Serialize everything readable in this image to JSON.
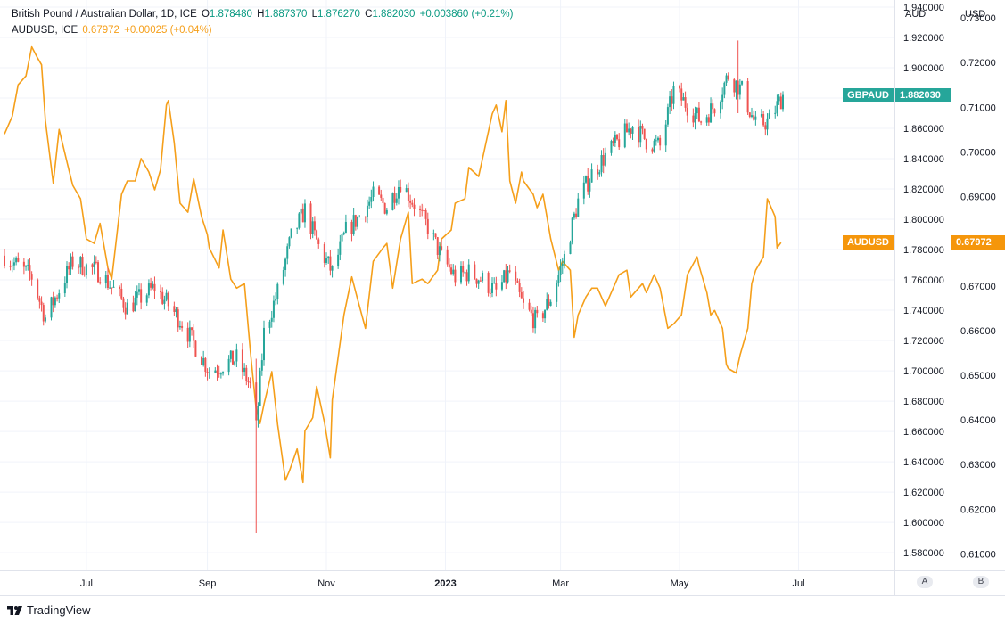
{
  "header": {
    "main_symbol": "British Pound / Australian Dollar, 1D, ICE",
    "o_label": "O",
    "o_value": "1.878480",
    "h_label": "H",
    "h_value": "1.887370",
    "l_label": "L",
    "l_value": "1.876270",
    "c_label": "C",
    "c_value": "1.882030",
    "change": "+0.003860 (+0.21%)",
    "compare_symbol": "AUDUSD, ICE",
    "compare_value": "0.67972",
    "compare_change": "+0.00025 (+0.04%)"
  },
  "axes": {
    "left_title": "AUD",
    "right_title": "USD",
    "left_scale_button": "A",
    "right_scale_button": "B"
  },
  "tags": {
    "gbpaud_label": "GBPAUD",
    "gbpaud_value": "1.882030",
    "audusd_label": "AUDUSD",
    "audusd_value": "0.67972"
  },
  "brand": "TradingView",
  "colors": {
    "up": "#26a69a",
    "down": "#ef5350",
    "compare": "#f59f1a",
    "grid": "#f0f3fa",
    "gbpaud_tag": "#26a69a",
    "audusd_tag": "#f5960b"
  },
  "chart_data": [
    {
      "type": "candlestick",
      "series_name": "GBPAUD",
      "axis_title": "AUD",
      "x_ticks": [
        "Jul",
        "Sep",
        "Nov",
        "2023",
        "Mar",
        "May",
        "Jul"
      ],
      "y_ticks": [
        1.58,
        1.6,
        1.62,
        1.64,
        1.66,
        1.68,
        1.7,
        1.72,
        1.74,
        1.76,
        1.78,
        1.8,
        1.82,
        1.84,
        1.86,
        1.88,
        1.9,
        1.92,
        1.94
      ],
      "ylim": [
        1.5683,
        1.9447
      ],
      "last": 1.88203,
      "anchors": [
        [
          "2022-05-20",
          1.776
        ],
        [
          "2022-06-03",
          1.762
        ],
        [
          "2022-06-10",
          1.735
        ],
        [
          "2022-06-24",
          1.772
        ],
        [
          "2022-07-08",
          1.765
        ],
        [
          "2022-07-22",
          1.742
        ],
        [
          "2022-08-05",
          1.755
        ],
        [
          "2022-08-19",
          1.732
        ],
        [
          "2022-09-02",
          1.7
        ],
        [
          "2022-09-16",
          1.708
        ],
        [
          "2022-09-23",
          1.69
        ],
        [
          "2022-09-26",
          1.662
        ],
        [
          "2022-09-30",
          1.725
        ],
        [
          "2022-10-07",
          1.752
        ],
        [
          "2022-10-14",
          1.788
        ],
        [
          "2022-10-21",
          1.806
        ],
        [
          "2022-10-28",
          1.782
        ],
        [
          "2022-11-04",
          1.765
        ],
        [
          "2022-11-11",
          1.792
        ],
        [
          "2022-11-18",
          1.802
        ],
        [
          "2022-11-25",
          1.815
        ],
        [
          "2022-12-02",
          1.808
        ],
        [
          "2022-12-09",
          1.825
        ],
        [
          "2022-12-16",
          1.81
        ],
        [
          "2022-12-23",
          1.795
        ],
        [
          "2022-12-30",
          1.775
        ],
        [
          "2023-01-06",
          1.762
        ],
        [
          "2023-01-13",
          1.765
        ],
        [
          "2023-01-20",
          1.76
        ],
        [
          "2023-01-27",
          1.752
        ],
        [
          "2023-02-03",
          1.765
        ],
        [
          "2023-02-10",
          1.742
        ],
        [
          "2023-02-17",
          1.732
        ],
        [
          "2023-02-24",
          1.748
        ],
        [
          "2023-03-03",
          1.775
        ],
        [
          "2023-03-10",
          1.812
        ],
        [
          "2023-03-17",
          1.83
        ],
        [
          "2023-03-24",
          1.842
        ],
        [
          "2023-03-31",
          1.852
        ],
        [
          "2023-04-07",
          1.862
        ],
        [
          "2023-04-14",
          1.852
        ],
        [
          "2023-04-21",
          1.848
        ],
        [
          "2023-04-28",
          1.885
        ],
        [
          "2023-05-05",
          1.875
        ],
        [
          "2023-05-12",
          1.865
        ],
        [
          "2023-05-19",
          1.875
        ],
        [
          "2023-05-26",
          1.895
        ],
        [
          "2023-06-02",
          1.885
        ],
        [
          "2023-06-09",
          1.862
        ],
        [
          "2023-06-16",
          1.865
        ],
        [
          "2023-06-23",
          1.882
        ]
      ],
      "extremes": [
        [
          "2022-09-26",
          1.593,
          1.708
        ],
        [
          "2023-05-31",
          1.87,
          1.918
        ]
      ]
    },
    {
      "type": "line",
      "series_name": "AUDUSD",
      "axis_title": "USD",
      "y_ticks": [
        0.61,
        0.62,
        0.63,
        0.64,
        0.65,
        0.66,
        0.67,
        0.68,
        0.69,
        0.7,
        0.71,
        0.72,
        0.73
      ],
      "ylim": [
        0.6063,
        0.734
      ],
      "last": 0.67972,
      "points": [
        [
          "2022-05-20",
          0.704
        ],
        [
          "2022-05-24",
          0.708
        ],
        [
          "2022-05-27",
          0.715
        ],
        [
          "2022-05-31",
          0.717
        ],
        [
          "2022-06-03",
          0.7235
        ],
        [
          "2022-06-06",
          0.721
        ],
        [
          "2022-06-08",
          0.7195
        ],
        [
          "2022-06-10",
          0.707
        ],
        [
          "2022-06-14",
          0.693
        ],
        [
          "2022-06-17",
          0.705
        ],
        [
          "2022-06-22",
          0.696
        ],
        [
          "2022-06-24",
          0.6925
        ],
        [
          "2022-06-28",
          0.6895
        ],
        [
          "2022-07-01",
          0.6805
        ],
        [
          "2022-07-05",
          0.6795
        ],
        [
          "2022-07-08",
          0.684
        ],
        [
          "2022-07-12",
          0.674
        ],
        [
          "2022-07-14",
          0.6715
        ],
        [
          "2022-07-19",
          0.6905
        ],
        [
          "2022-07-22",
          0.6935
        ],
        [
          "2022-07-26",
          0.6935
        ],
        [
          "2022-07-29",
          0.6985
        ],
        [
          "2022-08-02",
          0.6955
        ],
        [
          "2022-08-05",
          0.6915
        ],
        [
          "2022-08-08",
          0.696
        ],
        [
          "2022-08-11",
          0.7105
        ],
        [
          "2022-08-12",
          0.7115
        ],
        [
          "2022-08-15",
          0.702
        ],
        [
          "2022-08-18",
          0.6885
        ],
        [
          "2022-08-22",
          0.6865
        ],
        [
          "2022-08-25",
          0.694
        ],
        [
          "2022-08-29",
          0.6855
        ],
        [
          "2022-09-01",
          0.6815
        ],
        [
          "2022-09-02",
          0.6785
        ],
        [
          "2022-09-07",
          0.674
        ],
        [
          "2022-09-09",
          0.6825
        ],
        [
          "2022-09-13",
          0.6715
        ],
        [
          "2022-09-16",
          0.6695
        ],
        [
          "2022-09-20",
          0.6705
        ],
        [
          "2022-09-23",
          0.6555
        ],
        [
          "2022-09-26",
          0.6425
        ],
        [
          "2022-09-28",
          0.6392
        ],
        [
          "2022-09-30",
          0.6435
        ],
        [
          "2022-10-04",
          0.6508
        ],
        [
          "2022-10-07",
          0.639
        ],
        [
          "2022-10-11",
          0.6265
        ],
        [
          "2022-10-13",
          0.6285
        ],
        [
          "2022-10-17",
          0.6335
        ],
        [
          "2022-10-20",
          0.626
        ],
        [
          "2022-10-21",
          0.6375
        ],
        [
          "2022-10-25",
          0.6405
        ],
        [
          "2022-10-27",
          0.6475
        ],
        [
          "2022-10-31",
          0.6395
        ],
        [
          "2022-11-03",
          0.6315
        ],
        [
          "2022-11-04",
          0.6445
        ],
        [
          "2022-11-10",
          0.6635
        ],
        [
          "2022-11-14",
          0.672
        ],
        [
          "2022-11-17",
          0.667
        ],
        [
          "2022-11-21",
          0.6605
        ],
        [
          "2022-11-25",
          0.6755
        ],
        [
          "2022-11-30",
          0.6785
        ],
        [
          "2022-12-02",
          0.6795
        ],
        [
          "2022-12-05",
          0.6695
        ],
        [
          "2022-12-09",
          0.6805
        ],
        [
          "2022-12-13",
          0.6865
        ],
        [
          "2022-12-15",
          0.6705
        ],
        [
          "2022-12-20",
          0.6715
        ],
        [
          "2022-12-23",
          0.6705
        ],
        [
          "2022-12-28",
          0.6735
        ],
        [
          "2022-12-30",
          0.6805
        ],
        [
          "2023-01-04",
          0.6825
        ],
        [
          "2023-01-06",
          0.6885
        ],
        [
          "2023-01-11",
          0.6895
        ],
        [
          "2023-01-13",
          0.6965
        ],
        [
          "2023-01-18",
          0.6945
        ],
        [
          "2023-01-20",
          0.6985
        ],
        [
          "2023-01-25",
          0.7085
        ],
        [
          "2023-01-27",
          0.7105
        ],
        [
          "2023-01-30",
          0.7045
        ],
        [
          "2023-02-01",
          0.7115
        ],
        [
          "2023-02-03",
          0.6935
        ],
        [
          "2023-02-06",
          0.6885
        ],
        [
          "2023-02-09",
          0.6955
        ],
        [
          "2023-02-10",
          0.6935
        ],
        [
          "2023-02-15",
          0.6905
        ],
        [
          "2023-02-17",
          0.6875
        ],
        [
          "2023-02-20",
          0.6905
        ],
        [
          "2023-02-24",
          0.6805
        ],
        [
          "2023-02-28",
          0.6735
        ],
        [
          "2023-03-02",
          0.6755
        ],
        [
          "2023-03-06",
          0.6735
        ],
        [
          "2023-03-08",
          0.6585
        ],
        [
          "2023-03-10",
          0.6635
        ],
        [
          "2023-03-14",
          0.6675
        ],
        [
          "2023-03-17",
          0.6695
        ],
        [
          "2023-03-20",
          0.6695
        ],
        [
          "2023-03-24",
          0.6655
        ],
        [
          "2023-03-28",
          0.6695
        ],
        [
          "2023-03-31",
          0.6725
        ],
        [
          "2023-04-04",
          0.6735
        ],
        [
          "2023-04-06",
          0.6675
        ],
        [
          "2023-04-12",
          0.6705
        ],
        [
          "2023-04-14",
          0.6685
        ],
        [
          "2023-04-18",
          0.6725
        ],
        [
          "2023-04-21",
          0.6695
        ],
        [
          "2023-04-25",
          0.6605
        ],
        [
          "2023-04-28",
          0.6615
        ],
        [
          "2023-05-02",
          0.6635
        ],
        [
          "2023-05-05",
          0.6725
        ],
        [
          "2023-05-10",
          0.6765
        ],
        [
          "2023-05-11",
          0.6745
        ],
        [
          "2023-05-15",
          0.6685
        ],
        [
          "2023-05-17",
          0.6635
        ],
        [
          "2023-05-19",
          0.6645
        ],
        [
          "2023-05-23",
          0.6605
        ],
        [
          "2023-05-25",
          0.6525
        ],
        [
          "2023-05-26",
          0.6515
        ],
        [
          "2023-05-30",
          0.6505
        ],
        [
          "2023-06-01",
          0.6545
        ],
        [
          "2023-06-05",
          0.6605
        ],
        [
          "2023-06-07",
          0.6705
        ],
        [
          "2023-06-09",
          0.6735
        ],
        [
          "2023-06-13",
          0.6765
        ],
        [
          "2023-06-15",
          0.6895
        ],
        [
          "2023-06-16",
          0.6885
        ],
        [
          "2023-06-19",
          0.6855
        ],
        [
          "2023-06-20",
          0.6785
        ],
        [
          "2023-06-22",
          0.6797
        ]
      ]
    }
  ]
}
